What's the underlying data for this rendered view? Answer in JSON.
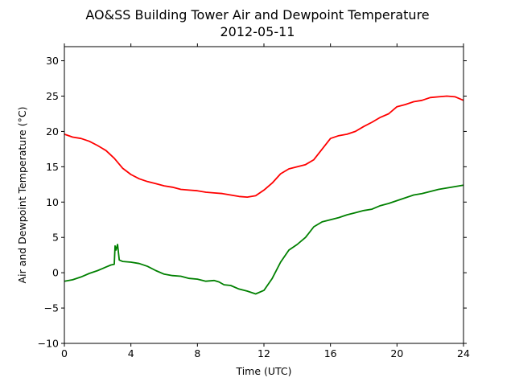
{
  "chart_data": {
    "type": "line",
    "title": "AO&SS Building Tower Air and Dewpoint Temperature",
    "subtitle": "2012-05-11",
    "xlabel": "Time (UTC)",
    "ylabel": "Air and Dewpoint Temperature (°C)",
    "xlim": [
      0,
      24
    ],
    "ylim": [
      -10,
      32
    ],
    "xticks": [
      0,
      4,
      8,
      12,
      16,
      20,
      24
    ],
    "yticks": [
      -10,
      -5,
      0,
      5,
      10,
      15,
      20,
      25,
      30
    ],
    "grid": false,
    "series": [
      {
        "color": "#ff0000",
        "x": [
          0,
          0.5,
          1,
          1.5,
          2,
          2.5,
          3,
          3.5,
          4,
          4.5,
          5,
          5.5,
          6,
          6.5,
          7,
          7.5,
          8,
          8.5,
          9,
          9.5,
          10,
          10.5,
          11,
          11.5,
          12,
          12.5,
          13,
          13.5,
          14,
          14.5,
          15,
          15.5,
          16,
          16.5,
          17,
          17.5,
          18,
          18.5,
          19,
          19.5,
          20,
          20.5,
          21,
          21.5,
          22,
          22.5,
          23,
          23.5,
          24
        ],
        "y": [
          19.6,
          19.2,
          19.0,
          18.6,
          18.0,
          17.3,
          16.2,
          14.8,
          13.9,
          13.3,
          12.9,
          12.6,
          12.3,
          12.1,
          11.8,
          11.7,
          11.6,
          11.4,
          11.3,
          11.2,
          11.0,
          10.8,
          10.7,
          10.9,
          11.7,
          12.7,
          14.0,
          14.7,
          15.0,
          15.3,
          16.0,
          17.5,
          19.0,
          19.4,
          19.6,
          20.0,
          20.7,
          21.3,
          22.0,
          22.5,
          23.5,
          23.8,
          24.2,
          24.4,
          24.8,
          24.9,
          25.0,
          24.9,
          24.4
        ]
      },
      {
        "color": "#008000",
        "x": [
          0,
          0.5,
          1,
          1.5,
          2,
          2.5,
          2.8,
          3.0,
          3.05,
          3.1,
          3.2,
          3.3,
          3.5,
          4,
          4.5,
          5,
          5.5,
          6,
          6.5,
          7,
          7.5,
          8,
          8.5,
          9,
          9.3,
          9.6,
          10,
          10.5,
          11,
          11.5,
          12,
          12.5,
          13,
          13.5,
          14,
          14.5,
          15,
          15.5,
          16,
          16.5,
          17,
          17.5,
          18,
          18.5,
          19,
          19.5,
          20,
          20.5,
          21,
          21.5,
          22,
          22.5,
          23,
          23.5,
          24
        ],
        "y": [
          -1.2,
          -1.0,
          -0.6,
          -0.1,
          0.3,
          0.8,
          1.1,
          1.2,
          3.8,
          3.2,
          4.0,
          1.8,
          1.6,
          1.5,
          1.3,
          0.9,
          0.3,
          -0.2,
          -0.4,
          -0.5,
          -0.8,
          -0.9,
          -1.2,
          -1.1,
          -1.3,
          -1.7,
          -1.8,
          -2.3,
          -2.6,
          -3.0,
          -2.5,
          -0.8,
          1.5,
          3.2,
          4.0,
          5.0,
          6.5,
          7.2,
          7.5,
          7.8,
          8.2,
          8.5,
          8.8,
          9.0,
          9.5,
          9.8,
          10.2,
          10.6,
          11.0,
          11.2,
          11.5,
          11.8,
          12.0,
          12.2,
          12.4
        ]
      }
    ]
  }
}
